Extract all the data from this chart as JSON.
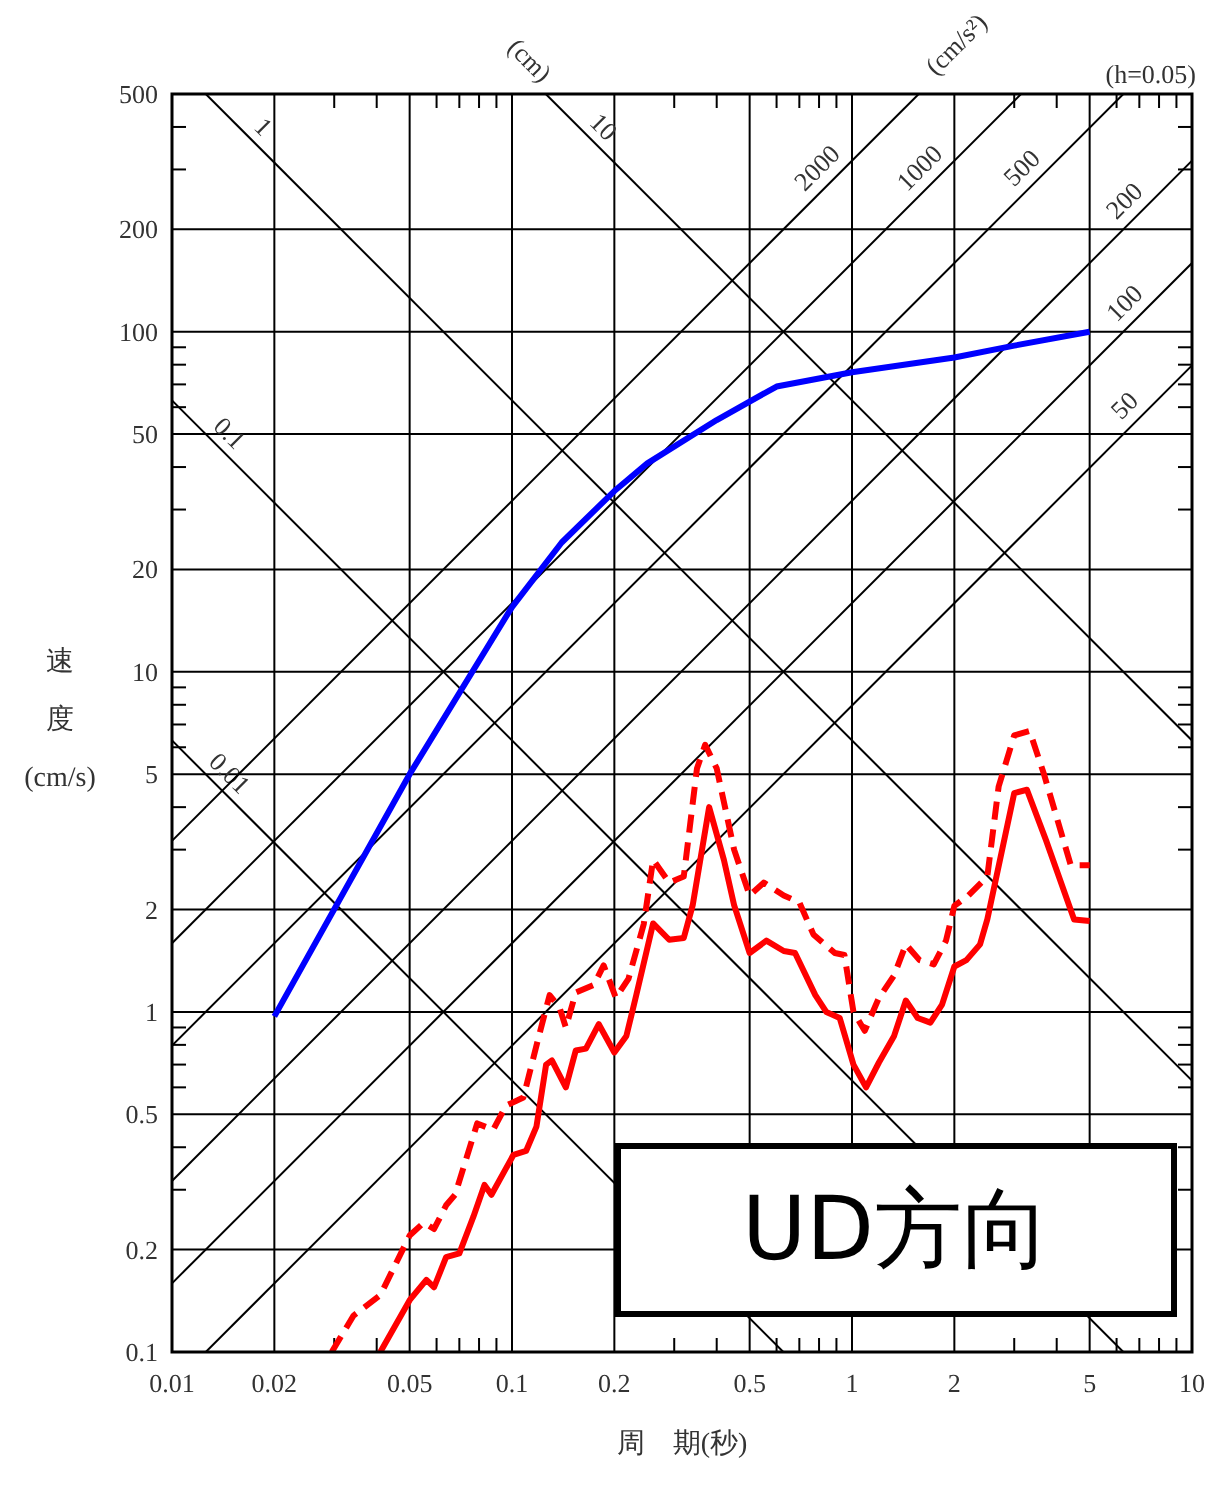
{
  "chart_data": {
    "type": "line",
    "xlabel": "周　期(秒)",
    "ylabel": "速度(cm/s)",
    "log": "xy",
    "grid": true,
    "marker": "none",
    "xlim": [
      0.01,
      10
    ],
    "ylim": [
      0.1,
      500
    ],
    "xticks": [
      0.01,
      0.02,
      {
        "value": 0.03,
        "label": null
      },
      {
        "value": 0.04,
        "label": null
      },
      0.05,
      {
        "value": 0.06,
        "label": null
      },
      {
        "value": 0.07,
        "label": null
      },
      {
        "value": 0.08,
        "label": null
      },
      {
        "value": 0.09,
        "label": null
      },
      0.1,
      0.2,
      {
        "value": 0.3,
        "label": null
      },
      {
        "value": 0.4,
        "label": null
      },
      0.5,
      {
        "value": 0.6,
        "label": null
      },
      {
        "value": 0.7,
        "label": null
      },
      {
        "value": 0.8,
        "label": null
      },
      {
        "value": 0.9,
        "label": null
      },
      1,
      2,
      {
        "value": 3,
        "label": null
      },
      {
        "value": 4,
        "label": null
      },
      5,
      {
        "value": 6,
        "label": null
      },
      {
        "value": 7,
        "label": null
      },
      {
        "value": 8,
        "label": null
      },
      {
        "value": 9,
        "label": null
      },
      10
    ],
    "yticks": [
      0.1,
      0.2,
      {
        "value": 0.3,
        "label": null
      },
      {
        "value": 0.4,
        "label": null
      },
      0.5,
      {
        "value": 0.6,
        "label": null
      },
      {
        "value": 0.7,
        "label": null
      },
      {
        "value": 0.8,
        "label": null
      },
      {
        "value": 0.9,
        "label": null
      },
      1,
      2,
      {
        "value": 3,
        "label": null
      },
      {
        "value": 4,
        "label": null
      },
      5,
      {
        "value": 6,
        "label": null
      },
      {
        "value": 7,
        "label": null
      },
      {
        "value": 8,
        "label": null
      },
      {
        "value": 9,
        "label": null
      },
      10,
      20,
      {
        "value": 30,
        "label": null
      },
      {
        "value": 40,
        "label": null
      },
      50,
      {
        "value": 60,
        "label": null
      },
      {
        "value": 70,
        "label": null
      },
      {
        "value": 80,
        "label": null
      },
      {
        "value": 90,
        "label": null
      },
      100,
      200,
      {
        "value": 300,
        "label": null
      },
      {
        "value": 400,
        "label": null
      },
      500
    ],
    "annotations": [
      "(cm)",
      "(cm/s²)",
      "(h=0.05)",
      "UD方向"
    ],
    "series": [
      {
        "name": "0.01",
        "color": "#000000",
        "x": [
          0.01,
          0.6283
        ],
        "values": [
          6.283,
          0.1
        ]
      },
      {
        "name": "0.1",
        "color": "#000000",
        "x": [
          0.01,
          6.283
        ],
        "values": [
          62.83,
          0.1
        ]
      },
      {
        "name": "1",
        "color": "#000000",
        "x": [
          0.01257,
          10
        ],
        "values": [
          500,
          0.6283
        ]
      },
      {
        "name": "10",
        "color": "#000000",
        "x": [
          0.1257,
          10
        ],
        "values": [
          500,
          6.283
        ]
      },
      {
        "name": "2000",
        "color": "#000000",
        "x": [
          0.01,
          1.571
        ],
        "values": [
          3.183,
          500
        ]
      },
      {
        "name": "1000",
        "color": "#000000",
        "x": [
          0.01,
          3.142
        ],
        "values": [
          1.592,
          500
        ]
      },
      {
        "name": "500",
        "color": "#000000",
        "x": [
          0.01,
          6.283
        ],
        "values": [
          0.7958,
          500
        ]
      },
      {
        "name": "200",
        "color": "#000000",
        "x": [
          0.01,
          10
        ],
        "values": [
          0.3183,
          318.3
        ]
      },
      {
        "name": "100",
        "color": "#000000",
        "x": [
          0.01,
          10
        ],
        "values": [
          0.1592,
          159.2
        ]
      },
      {
        "name": "50",
        "color": "#000000",
        "x": [
          0.01257,
          10
        ],
        "values": [
          0.1,
          79.58
        ]
      },
      {
        "color": "#0000ff",
        "x": [
          0.02,
          0.05,
          0.1,
          0.14,
          0.2,
          0.25,
          0.4,
          0.6,
          1,
          2,
          3,
          5
        ],
        "values": [
          0.97,
          5,
          15.5,
          24,
          34,
          41,
          55,
          69,
          76,
          84,
          91,
          100
        ]
      },
      {
        "color": "#ff0000",
        "line_style": "solid",
        "x": [
          0.041,
          0.05,
          0.056,
          0.059,
          0.064,
          0.07,
          0.077,
          0.083,
          0.087,
          0.101,
          0.11,
          0.118,
          0.126,
          0.131,
          0.144,
          0.154,
          0.165,
          0.18,
          0.2,
          0.217,
          0.232,
          0.26,
          0.29,
          0.32,
          0.34,
          0.38,
          0.42,
          0.45,
          0.5,
          0.56,
          0.63,
          0.68,
          0.78,
          0.84,
          0.92,
          1.01,
          1.1,
          1.2,
          1.33,
          1.44,
          1.56,
          1.7,
          1.84,
          2,
          2.17,
          2.38,
          2.5,
          3,
          3.27,
          3.72,
          4.5,
          5
        ],
        "values": [
          0.1,
          0.142,
          0.163,
          0.155,
          0.19,
          0.195,
          0.25,
          0.31,
          0.29,
          0.38,
          0.39,
          0.46,
          0.7,
          0.72,
          0.6,
          0.77,
          0.78,
          0.92,
          0.76,
          0.85,
          1.12,
          1.82,
          1.63,
          1.65,
          2.06,
          4,
          2.8,
          2.06,
          1.49,
          1.62,
          1.51,
          1.49,
          1.12,
          1,
          0.96,
          0.7,
          0.6,
          0.71,
          0.85,
          1.08,
          0.96,
          0.93,
          1.05,
          1.36,
          1.42,
          1.58,
          1.87,
          4.4,
          4.5,
          3.2,
          1.87,
          1.85
        ]
      },
      {
        "color": "#ff0000",
        "line_style": "dashed",
        "x": [
          0.0295,
          0.0342,
          0.041,
          0.05,
          0.055,
          0.059,
          0.064,
          0.068,
          0.079,
          0.088,
          0.096,
          0.108,
          0.12,
          0.129,
          0.138,
          0.144,
          0.154,
          0.174,
          0.186,
          0.202,
          0.22,
          0.244,
          0.26,
          0.29,
          0.32,
          0.35,
          0.37,
          0.4,
          0.45,
          0.5,
          0.55,
          0.63,
          0.7,
          0.77,
          0.89,
          0.95,
          1.01,
          1.09,
          1.2,
          1.33,
          1.44,
          1.58,
          1.74,
          1.89,
          2,
          2.2,
          2.5,
          2.7,
          3,
          3.33,
          3.67,
          4.4,
          5
        ],
        "values": [
          0.1,
          0.128,
          0.147,
          0.22,
          0.24,
          0.23,
          0.27,
          0.29,
          0.47,
          0.45,
          0.53,
          0.56,
          0.85,
          1.12,
          1.03,
          0.9,
          1.14,
          1.2,
          1.37,
          1.1,
          1.25,
          1.81,
          2.8,
          2.4,
          2.5,
          5.2,
          6.1,
          5.2,
          3,
          2.2,
          2.4,
          2.2,
          2.1,
          1.69,
          1.49,
          1.47,
          1,
          0.88,
          1.1,
          1.28,
          1.58,
          1.42,
          1.38,
          1.62,
          2.05,
          2.2,
          2.5,
          4.6,
          6.5,
          6.7,
          5,
          2.7,
          2.7
        ]
      }
    ]
  }
}
